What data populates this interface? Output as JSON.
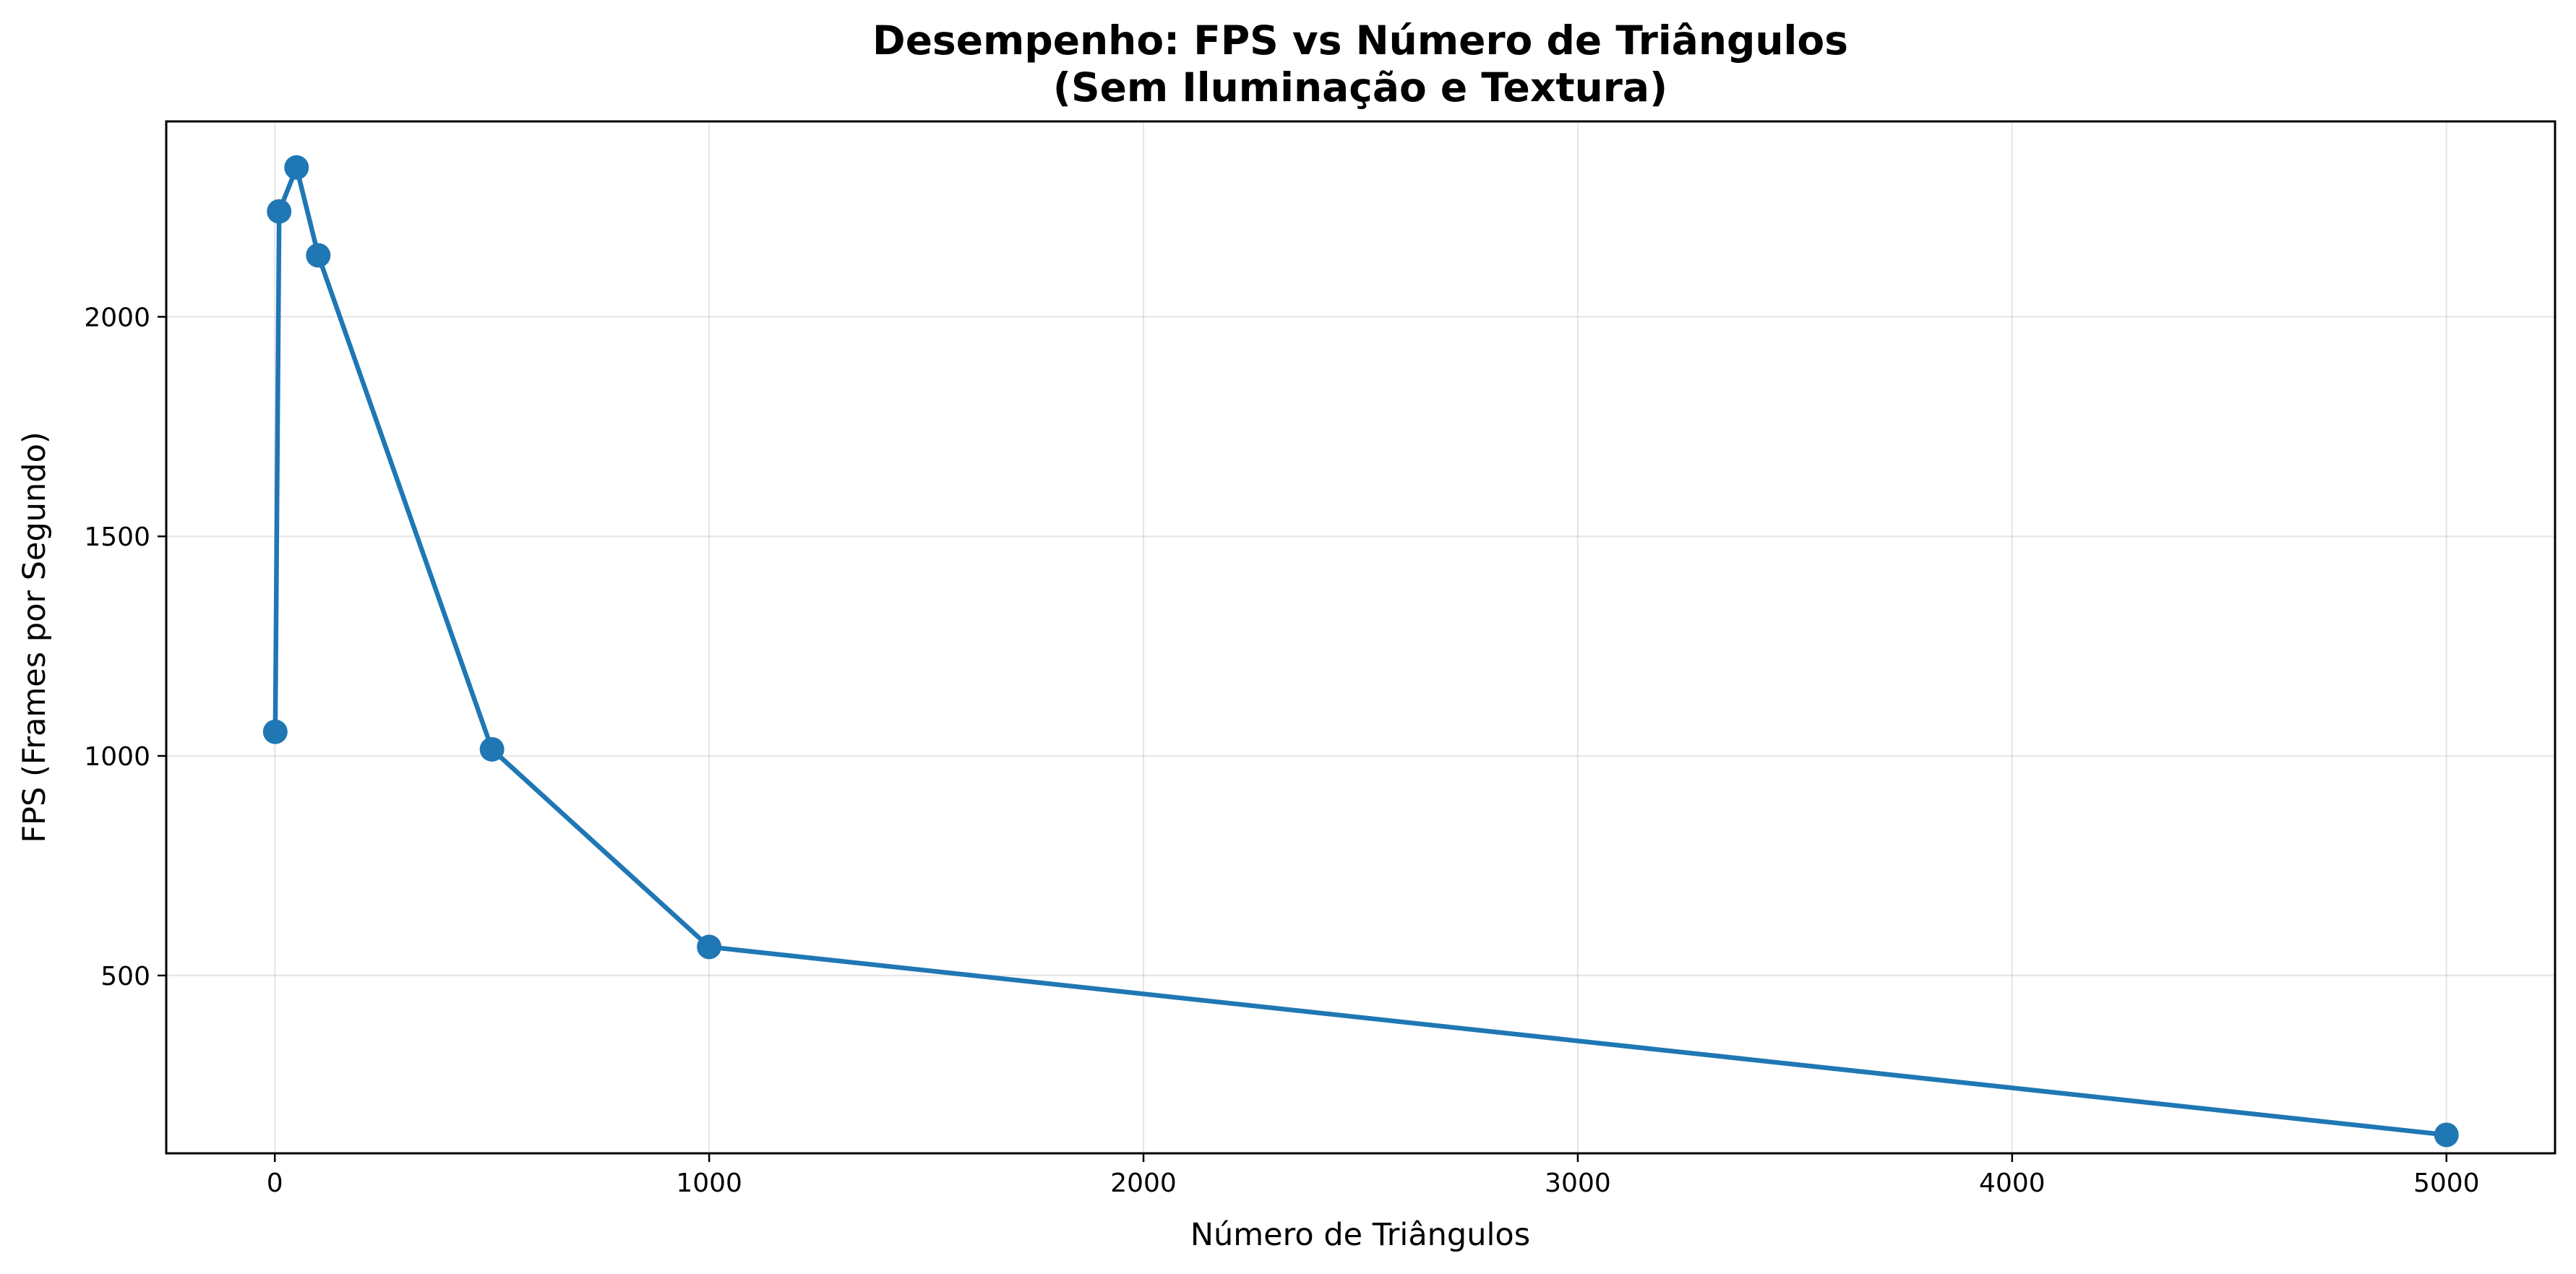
{
  "chart_data": {
    "type": "line",
    "title": "Desempenho: FPS vs Número de Triângulos",
    "subtitle": "(Sem Iluminação e Textura)",
    "xlabel": "Número de Triângulos",
    "ylabel": "FPS (Frames por Segundo)",
    "xlim": [
      -250,
      5250
    ],
    "ylim": [
      95,
      2445
    ],
    "xticks": [
      0,
      1000,
      2000,
      3000,
      4000,
      5000
    ],
    "yticks": [
      500,
      1000,
      1500,
      2000
    ],
    "grid": true,
    "legend": "none",
    "series": [
      {
        "color": "#1f77b4",
        "marker": "circle",
        "points": [
          {
            "x": 1,
            "y": 1055
          },
          {
            "x": 10,
            "y": 2240
          },
          {
            "x": 50,
            "y": 2340
          },
          {
            "x": 100,
            "y": 2140
          },
          {
            "x": 500,
            "y": 1015
          },
          {
            "x": 1000,
            "y": 565
          },
          {
            "x": 5000,
            "y": 137
          }
        ]
      }
    ]
  }
}
